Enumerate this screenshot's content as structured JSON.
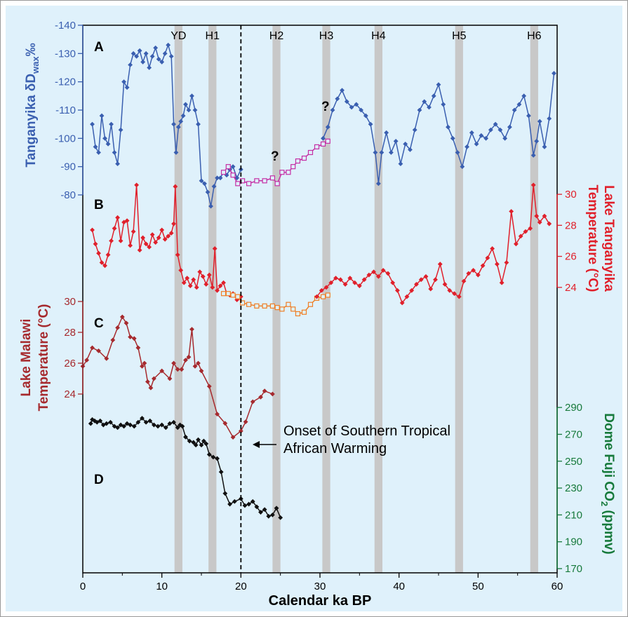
{
  "colors": {
    "background": "#ffffff",
    "panel": "#dff1fb",
    "band": "#c8c8c8",
    "tanganyika_dd": "#3a5fb0",
    "tanganyika_dd_alt": "#c52fa5",
    "tanganyika_temp": "#e0202b",
    "tanganyika_temp_alt": "#ef7f25",
    "malawi": "#a62a2e",
    "co2": "#111111",
    "co2_axis": "#177a3c"
  },
  "xaxis": {
    "label": "Calendar ka BP",
    "ticks": [
      "0",
      "10",
      "20",
      "30",
      "40",
      "50",
      "60"
    ],
    "range": [
      0,
      60
    ]
  },
  "bands": [
    {
      "label": "YD",
      "start": 11.6,
      "end": 12.6
    },
    {
      "label": "H1",
      "start": 15.9,
      "end": 16.9
    },
    {
      "label": "H2",
      "start": 24.0,
      "end": 25.0
    },
    {
      "label": "H3",
      "start": 30.3,
      "end": 31.3
    },
    {
      "label": "H4",
      "start": 36.9,
      "end": 37.9
    },
    {
      "label": "H5",
      "start": 47.1,
      "end": 48.1
    },
    {
      "label": "H6",
      "start": 56.6,
      "end": 57.6
    }
  ],
  "onset": {
    "x": 20.0,
    "label_line1": "Onset of Southern Tropical",
    "label_line2": "African Warming"
  },
  "panels": {
    "a": {
      "letter": "A",
      "axis_title": "Tanganyika δD",
      "axis_sub": "wax",
      "axis_unit": "‰",
      "range": [
        -140,
        -80
      ],
      "ticks": [
        "-140",
        "-130",
        "-120",
        "-110",
        "-100",
        "-90",
        "-80"
      ],
      "question1": "?",
      "question2": "?"
    },
    "b": {
      "letter": "B",
      "axis_title_line1": "Lake Tanganyika",
      "axis_title_line2": "Temperature (°C)",
      "range": [
        23,
        31
      ],
      "ticks": [
        "30",
        "28",
        "26",
        "24"
      ]
    },
    "c": {
      "letter": "C",
      "axis_title_line1": "Lake Malawi",
      "axis_title_line2": "Temperature (°C)",
      "range": [
        22.5,
        31.5
      ],
      "ticks": [
        "30",
        "28",
        "26",
        "24"
      ]
    },
    "d": {
      "letter": "D",
      "axis_title": "Dome Fuji CO",
      "axis_sub": "2",
      "axis_unit": " (ppmv)",
      "range": [
        170,
        300
      ],
      "ticks": [
        "290",
        "270",
        "250",
        "230",
        "210",
        "190",
        "170"
      ]
    }
  },
  "chart_data": {
    "type": "line",
    "xlabel": "Calendar ka BP",
    "xlim": [
      0,
      60
    ],
    "series": [
      {
        "panel": "A",
        "y_axis": "Tanganyika δDwax ‰ (inverted, -140 top)",
        "ylim": [
          -140,
          -80
        ],
        "x": [
          1.2,
          1.6,
          2.0,
          2.4,
          2.8,
          3.2,
          3.6,
          4.0,
          4.4,
          4.8,
          5.2,
          5.6,
          6.0,
          6.4,
          6.8,
          7.2,
          7.6,
          8.0,
          8.4,
          8.8,
          9.2,
          9.6,
          10.0,
          10.4,
          10.8,
          11.2,
          11.5,
          11.8,
          12.1,
          12.4,
          12.7,
          13.0,
          13.4,
          13.8,
          14.2,
          14.6,
          15.0,
          15.4,
          15.8,
          16.2,
          16.6,
          17.0,
          17.4,
          17.8,
          18.2,
          18.6,
          19.0,
          19.5,
          20.0
        ],
        "y": [
          -105,
          -97,
          -95,
          -108,
          -100,
          -98,
          -105,
          -95,
          -91,
          -103,
          -120,
          -118,
          -126,
          -130,
          -129,
          -131,
          -127,
          -130,
          -125,
          -129,
          -132,
          -128,
          -127,
          -130,
          -133,
          -129,
          -105,
          -95,
          -104,
          -106,
          -108,
          -112,
          -110,
          -115,
          -110,
          -105,
          -85,
          -84,
          -81,
          -76,
          -83,
          -86,
          -86,
          -88,
          -87,
          -89,
          -90,
          -86,
          -89
        ]
      },
      {
        "panel": "A",
        "style": "open-square",
        "y_axis": "Tanganyika δDwax ‰",
        "ylim": [
          -140,
          -80
        ],
        "x": [
          17.8,
          18.4,
          19.0,
          19.6,
          20.2,
          21.0,
          22.0,
          23.0,
          24.0,
          24.6,
          25.2,
          26.0,
          26.6,
          27.2,
          28.0,
          28.8,
          29.6,
          30.4,
          31.0
        ],
        "y": [
          -88,
          -90,
          -87,
          -84,
          -85,
          -84,
          -85,
          -85,
          -86,
          -84,
          -88,
          -88,
          -90,
          -92,
          -93,
          -95,
          -97,
          -98,
          -99
        ]
      },
      {
        "panel": "A",
        "y_axis": "Tanganyika δDwax ‰",
        "ylim": [
          -140,
          -80
        ],
        "x": [
          30.4,
          31.0,
          31.6,
          32.2,
          32.8,
          33.4,
          34.0,
          34.6,
          35.2,
          35.8,
          36.4,
          37.0,
          37.4,
          37.8,
          38.4,
          39.0,
          39.6,
          40.2,
          40.8,
          41.4,
          42.0,
          42.6,
          43.2,
          43.8,
          44.4,
          45.0,
          45.6,
          46.2,
          46.8,
          47.4,
          48.0,
          48.6,
          49.2,
          49.8,
          50.4,
          51.0,
          51.6,
          52.2,
          52.8,
          53.4,
          54.0,
          54.6,
          55.2,
          55.8,
          56.4,
          57.0,
          57.4,
          57.8,
          58.4,
          59.0,
          59.6
        ],
        "y": [
          -100,
          -104,
          -110,
          -114,
          -117,
          -113,
          -111,
          -112,
          -110,
          -108,
          -105,
          -95,
          -84,
          -95,
          -102,
          -95,
          -99,
          -91,
          -98,
          -96,
          -103,
          -110,
          -113,
          -111,
          -115,
          -119,
          -112,
          -104,
          -100,
          -95,
          -90,
          -97,
          -102,
          -98,
          -101,
          -100,
          -103,
          -105,
          -103,
          -100,
          -104,
          -110,
          -112,
          -115,
          -108,
          -94,
          -99,
          -106,
          -97,
          -107,
          -123
        ]
      },
      {
        "panel": "B",
        "y_axis": "Lake Tanganyika Temperature (°C)",
        "ylim": [
          23,
          31
        ],
        "x": [
          1.2,
          1.6,
          2.0,
          2.4,
          2.8,
          3.2,
          3.6,
          4.0,
          4.4,
          4.8,
          5.2,
          5.6,
          6.0,
          6.4,
          6.8,
          7.2,
          7.6,
          8.0,
          8.4,
          8.8,
          9.2,
          9.6,
          10.0,
          10.4,
          10.8,
          11.2,
          11.5,
          11.7,
          12.0,
          12.4,
          12.8,
          13.2,
          13.6,
          14.0,
          14.4,
          14.8,
          15.2,
          15.6,
          16.0,
          16.4,
          16.7,
          17.0,
          17.4,
          17.8,
          18.2,
          18.6,
          19.0,
          19.5,
          20.0
        ],
        "y": [
          27.7,
          26.8,
          26.2,
          25.6,
          25.4,
          26.1,
          27.0,
          27.8,
          28.5,
          27.0,
          28.2,
          28.3,
          26.7,
          27.6,
          30.6,
          26.4,
          27.2,
          26.8,
          26.6,
          27.4,
          26.9,
          27.2,
          27.7,
          27.1,
          27.3,
          27.5,
          28.1,
          30.5,
          26.1,
          25.1,
          24.3,
          24.6,
          24.1,
          24.5,
          24.0,
          25.0,
          24.7,
          24.2,
          24.8,
          24.0,
          26.5,
          23.8,
          24.1,
          24.3,
          23.6,
          23.5,
          23.6,
          23.2,
          23.4
        ]
      },
      {
        "panel": "B",
        "style": "open-square",
        "y_axis": "Lake Tanganyika Temperature (°C)",
        "ylim": [
          23,
          31
        ],
        "x": [
          17.8,
          18.4,
          19.0,
          19.6,
          20.2,
          21.0,
          22.0,
          23.0,
          24.0,
          24.6,
          25.2,
          26.0,
          26.6,
          27.2,
          28.0,
          28.8,
          29.6,
          30.4,
          31.0
        ],
        "y": [
          23.6,
          23.6,
          23.5,
          23.4,
          23.0,
          22.9,
          22.8,
          22.8,
          22.8,
          22.7,
          22.6,
          22.9,
          22.6,
          22.3,
          22.4,
          22.9,
          23.3,
          23.4,
          23.5
        ]
      },
      {
        "panel": "B",
        "y_axis": "Lake Tanganyika Temperature (°C)",
        "ylim": [
          23,
          31
        ],
        "x": [
          29.6,
          30.2,
          30.8,
          31.4,
          32.0,
          32.6,
          33.2,
          33.8,
          34.4,
          35.0,
          35.6,
          36.2,
          36.8,
          37.4,
          38.0,
          38.6,
          39.2,
          39.8,
          40.4,
          41.0,
          41.6,
          42.2,
          42.8,
          43.4,
          44.0,
          44.6,
          45.2,
          45.8,
          46.4,
          47.0,
          47.6,
          48.2,
          48.8,
          49.4,
          50.0,
          50.6,
          51.2,
          51.8,
          52.4,
          53.0,
          53.6,
          54.2,
          54.8,
          55.4,
          56.0,
          56.6,
          57.0,
          57.4,
          57.8,
          58.4,
          59.0
        ],
        "y": [
          23.4,
          23.8,
          24.0,
          24.3,
          24.6,
          24.5,
          24.2,
          24.6,
          24.3,
          24.1,
          24.5,
          24.8,
          25.0,
          24.7,
          25.1,
          24.9,
          24.3,
          23.8,
          23.0,
          23.4,
          23.8,
          24.2,
          24.5,
          24.7,
          23.9,
          24.5,
          25.5,
          24.2,
          23.8,
          23.6,
          23.4,
          24.4,
          24.9,
          25.1,
          24.8,
          25.4,
          25.9,
          26.5,
          25.5,
          24.3,
          25.6,
          28.9,
          26.8,
          27.3,
          27.6,
          27.8,
          30.6,
          28.6,
          28.2,
          28.6,
          28.1
        ]
      },
      {
        "panel": "C",
        "y_axis": "Lake Malawi Temperature (°C)",
        "ylim": [
          22.5,
          31.5
        ],
        "x": [
          0.0,
          0.5,
          1.2,
          2.0,
          3.0,
          3.8,
          4.4,
          5.0,
          5.5,
          6.0,
          6.5,
          7.0,
          7.5,
          7.8,
          8.2,
          8.6,
          9.0,
          10.0,
          11.0,
          11.5,
          12.0,
          12.5,
          13.0,
          13.4,
          13.8,
          14.2,
          14.6,
          15.0,
          16.0,
          17.0,
          18.0,
          19.0,
          20.0,
          20.6,
          21.5,
          22.5,
          23.0,
          24.0
        ],
        "y": [
          25.8,
          26.2,
          27.0,
          26.8,
          26.3,
          27.5,
          28.3,
          29.0,
          28.6,
          27.7,
          27.6,
          27.0,
          25.8,
          26.0,
          24.8,
          24.4,
          25.0,
          25.5,
          25.0,
          26.0,
          25.6,
          25.6,
          26.2,
          26.4,
          28.2,
          25.8,
          26.0,
          25.5,
          24.5,
          22.7,
          22.1,
          21.2,
          21.6,
          22.2,
          23.5,
          23.8,
          24.2,
          24.0
        ]
      },
      {
        "panel": "D",
        "y_axis": "Dome Fuji CO2 (ppmv)",
        "ylim": [
          170,
          300
        ],
        "x": [
          1.0,
          1.2,
          1.5,
          1.8,
          2.2,
          2.6,
          3.0,
          3.5,
          4.0,
          4.4,
          4.8,
          5.2,
          5.6,
          6.0,
          6.5,
          7.0,
          7.5,
          8.0,
          8.5,
          9.0,
          9.5,
          10.0,
          10.5,
          11.0,
          11.5,
          12.0,
          12.3,
          12.6,
          13.0,
          13.5,
          14.0,
          14.3,
          14.6,
          15.0,
          15.3,
          15.6,
          16.0,
          16.5,
          17.0,
          17.5,
          18.0,
          18.6,
          19.2,
          20.0,
          20.5,
          21.0,
          21.5,
          22.0,
          22.5,
          23.0,
          23.5,
          24.0,
          24.5,
          25.0
        ],
        "y": [
          278,
          281,
          280,
          279,
          280,
          277,
          278,
          279,
          276,
          275,
          277,
          276,
          278,
          277,
          276,
          279,
          282,
          279,
          280,
          277,
          276,
          277,
          275,
          278,
          279,
          275,
          277,
          276,
          268,
          265,
          264,
          262,
          266,
          262,
          265,
          263,
          255,
          253,
          252,
          242,
          226,
          218,
          220,
          222,
          217,
          218,
          220,
          216,
          212,
          214,
          209,
          210,
          215,
          208
        ]
      }
    ]
  }
}
